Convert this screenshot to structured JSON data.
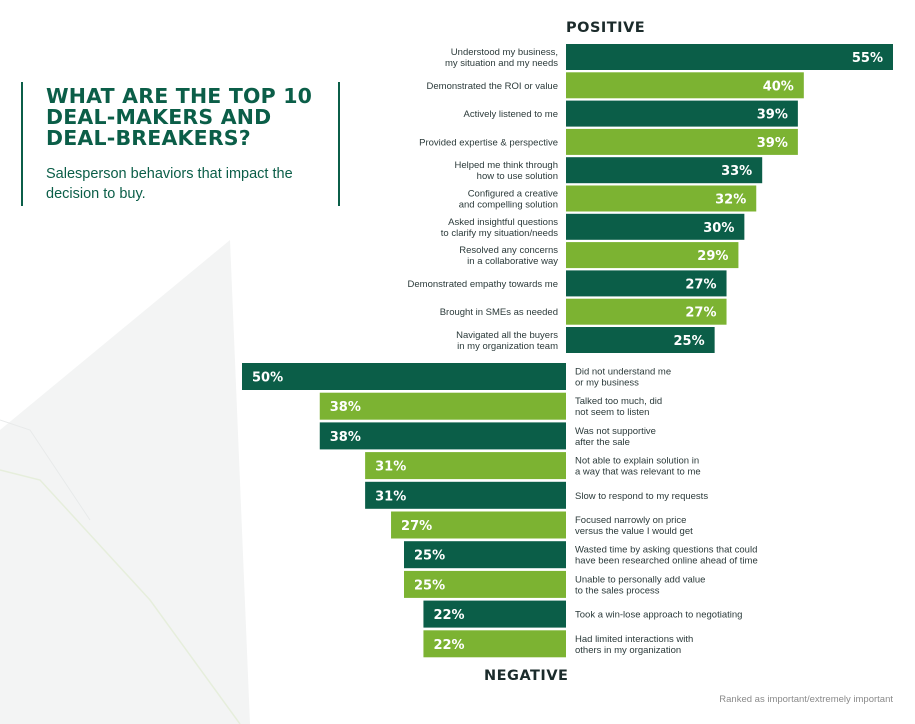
{
  "title": "WHAT ARE THE TOP 10 DEAL-MAKERS AND DEAL-BREAKERS?",
  "subtitle": "Salesperson behaviors that impact the decision to buy.",
  "footnote": "Ranked as important/extremely important",
  "colors": {
    "dark_green": "#0b5e48",
    "light_green": "#7cb332",
    "text": "#2b3a3a"
  },
  "chart_data": [
    {
      "type": "bar",
      "orientation": "horizontal",
      "section_label": "POSITIVE",
      "categories": [
        "Understood my business,\nmy situation and my needs",
        "Demonstrated the ROI or value",
        "Actively listened to me",
        "Provided expertise & perspective",
        "Helped me think through\nhow to use solution",
        "Configured a creative\nand compelling solution",
        "Asked insightful questions\nto clarify my situation/needs",
        "Resolved any concerns\nin a collaborative way",
        "Demonstrated empathy towards me",
        "Brought in SMEs as needed",
        "Navigated all the buyers\nin my organization team"
      ],
      "values": [
        55,
        40,
        39,
        39,
        33,
        32,
        30,
        29,
        27,
        27,
        25
      ],
      "value_labels": [
        "55%",
        "40%",
        "39%",
        "39%",
        "33%",
        "32%",
        "30%",
        "29%",
        "27%",
        "27%",
        "25%"
      ],
      "bar_colors": [
        "#0b5e48",
        "#7cb332",
        "#0b5e48",
        "#7cb332",
        "#0b5e48",
        "#7cb332",
        "#0b5e48",
        "#7cb332",
        "#0b5e48",
        "#7cb332",
        "#0b5e48"
      ],
      "xlim": [
        0,
        55
      ]
    },
    {
      "type": "bar",
      "orientation": "horizontal",
      "direction": "leftward",
      "section_label": "NEGATIVE",
      "categories": [
        "Did not understand me\nor my business",
        "Talked too much, did\nnot seem to listen",
        "Was not supportive\nafter the sale",
        "Not able to explain solution in\na way that was relevant to me",
        "Slow to respond to my requests",
        "Focused narrowly on price\nversus the value I would get",
        "Wasted time by asking questions that could\nhave been researched online ahead of time",
        "Unable to personally add value\nto the sales process",
        "Took a win-lose approach to negotiating",
        "Had limited interactions with\nothers in my organization"
      ],
      "values": [
        50,
        38,
        38,
        31,
        31,
        27,
        25,
        25,
        22,
        22
      ],
      "value_labels": [
        "50%",
        "38%",
        "38%",
        "31%",
        "31%",
        "27%",
        "25%",
        "25%",
        "22%",
        "22%"
      ],
      "bar_colors": [
        "#0b5e48",
        "#7cb332",
        "#0b5e48",
        "#7cb332",
        "#0b5e48",
        "#7cb332",
        "#0b5e48",
        "#7cb332",
        "#0b5e48",
        "#7cb332"
      ],
      "xlim": [
        0,
        50
      ]
    }
  ]
}
